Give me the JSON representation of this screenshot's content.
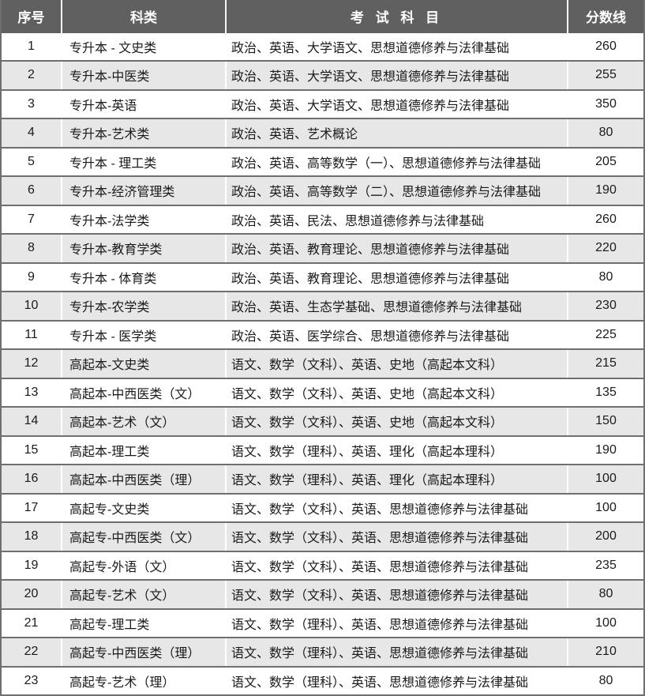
{
  "colors": {
    "header_bg": "#606060",
    "header_text": "#ffffff",
    "row_alt_bg": "#e7e7e7",
    "row_bg": "#ffffff",
    "grid_line": "#6f6f6f",
    "cell_separator": "#ffffff",
    "text": "#1a1a1a"
  },
  "table": {
    "headers": {
      "no": "序号",
      "category": "科类",
      "subjects": "考 试 科 目",
      "score": "分数线"
    },
    "rows": [
      {
        "no": "1",
        "category": "专升本 - 文史类",
        "subjects": "政治、英语、大学语文、思想道德修养与法律基础",
        "score": "260"
      },
      {
        "no": "2",
        "category": "专升本-中医类",
        "subjects": "政治、英语、大学语文、思想道德修养与法律基础",
        "score": "255"
      },
      {
        "no": "3",
        "category": "专升本-英语",
        "subjects": "政治、英语、大学语文、思想道德修养与法律基础",
        "score": "350"
      },
      {
        "no": "4",
        "category": "专升本-艺术类",
        "subjects": "政治、英语、艺术概论",
        "score": "80"
      },
      {
        "no": "5",
        "category": "专升本 - 理工类",
        "subjects": "政治、英语、高等数学（一）、思想道德修养与法律基础",
        "score": "205"
      },
      {
        "no": "6",
        "category": "专升本-经济管理类",
        "subjects": "政治、英语、高等数学（二）、思想道德修养与法律基础",
        "score": "190"
      },
      {
        "no": "7",
        "category": "专升本-法学类",
        "subjects": "政治、英语、民法、思想道德修养与法律基础",
        "score": "260"
      },
      {
        "no": "8",
        "category": "专升本-教育学类",
        "subjects": "政治、英语、教育理论、思想道德修养与法律基础",
        "score": "220"
      },
      {
        "no": "9",
        "category": "专升本 - 体育类",
        "subjects": "政治、英语、教育理论、思想道德修养与法律基础",
        "score": "80"
      },
      {
        "no": "10",
        "category": "专升本-农学类",
        "subjects": "政治、英语、生态学基础、思想道德修养与法律基础",
        "score": "230"
      },
      {
        "no": "11",
        "category": "专升本 - 医学类",
        "subjects": "政治、英语、医学综合、思想道德修养与法律基础",
        "score": "225"
      },
      {
        "no": "12",
        "category": "高起本-文史类",
        "subjects": "语文、数学（文科）、英语、史地（高起本文科）",
        "score": "215"
      },
      {
        "no": "13",
        "category": "高起本-中西医类（文）",
        "subjects": "语文、数学（文科）、英语、史地（高起本文科）",
        "score": "135"
      },
      {
        "no": "14",
        "category": "高起本-艺术（文）",
        "subjects": "语文、数学（文科）、英语、史地（高起本文科）",
        "score": "150"
      },
      {
        "no": "15",
        "category": "高起本-理工类",
        "subjects": "语文、数学（理科）、英语、理化（高起本理科）",
        "score": "190"
      },
      {
        "no": "16",
        "category": "高起本-中西医类（理）",
        "subjects": "语文、数学（理科）、英语、理化（高起本理科）",
        "score": "100"
      },
      {
        "no": "17",
        "category": "高起专-文史类",
        "subjects": "语文、数学（文科）、英语、思想道德修养与法律基础",
        "score": "100"
      },
      {
        "no": "18",
        "category": "高起专-中西医类（文）",
        "subjects": "语文、数学（文科）、英语、思想道德修养与法律基础",
        "score": "200"
      },
      {
        "no": "19",
        "category": "高起专-外语（文）",
        "subjects": "语文、数学（文科）、英语、思想道德修养与法律基础",
        "score": "235"
      },
      {
        "no": "20",
        "category": "高起专-艺术（文）",
        "subjects": "语文、数学（文科）、英语、思想道德修养与法律基础",
        "score": "80"
      },
      {
        "no": "21",
        "category": "高起专-理工类",
        "subjects": "语文、数学（理科）、英语、思想道德修养与法律基础",
        "score": "100"
      },
      {
        "no": "22",
        "category": "高起专-中西医类（理）",
        "subjects": "语文、数学（理科）、英语、思想道德修养与法律基础",
        "score": "210"
      },
      {
        "no": "23",
        "category": "高起专-艺术（理）",
        "subjects": "语文、数学（理科）、英语、思想道德修养与法律基础",
        "score": "80"
      }
    ]
  }
}
